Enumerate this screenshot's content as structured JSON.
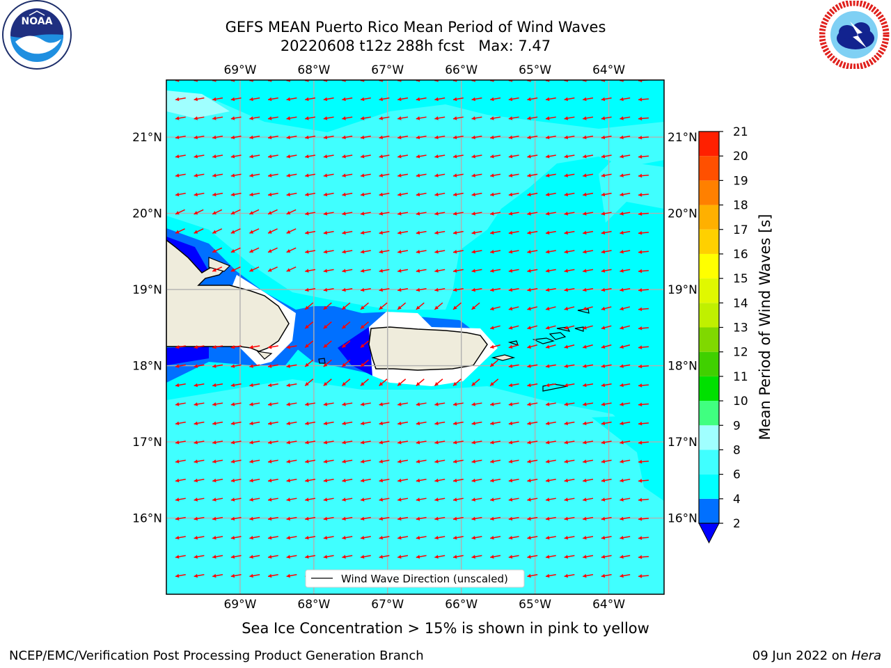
{
  "title_line1": "GEFS MEAN Puerto Rico Mean Period of Wind Waves",
  "title_line2": "20220608 t12z 288h fcst   Max: 7.47",
  "logos": {
    "left": "noaa-logo",
    "right": "nws-logo"
  },
  "map": {
    "lon_labels": [
      "69°W",
      "68°W",
      "67°W",
      "66°W",
      "65°W",
      "64°W"
    ],
    "lat_labels": [
      "21°N",
      "20°N",
      "19°N",
      "18°N",
      "17°N",
      "16°N"
    ],
    "lon_range": [
      -70.0,
      -63.25
    ],
    "lat_range": [
      15.0,
      21.75
    ],
    "grid": true,
    "land_color": "#efecdc",
    "ocean_color": "#00ffff",
    "arrow_color": "#ff0000",
    "arrow_direction": "westward"
  },
  "legend": {
    "label": "Wind Wave Direction (unscaled)",
    "placement": "bottom-center"
  },
  "colorbar": {
    "label": "Mean Period of Wind Waves [s]",
    "ticks": [
      2,
      4,
      6,
      8,
      9,
      10,
      11,
      12,
      13,
      14,
      15,
      16,
      17,
      18,
      19,
      20,
      21
    ],
    "colors": [
      "#0070ff",
      "#00ffff",
      "#40ffff",
      "#a0ffff",
      "#40ff80",
      "#00e000",
      "#40d000",
      "#80d800",
      "#c0f000",
      "#e0f800",
      "#ffff00",
      "#ffd000",
      "#ffb000",
      "#ff8000",
      "#ff5000",
      "#ff2000"
    ],
    "under_color": "#0000ff"
  },
  "sea_ice_note": "Sea Ice Concentration > 15% is shown in pink to yellow",
  "footer_left": "NCEP/EMC/Verification Post Processing Product Generation Branch",
  "footer_date": "09 Jun 2022 on",
  "footer_machine": "Hera"
}
